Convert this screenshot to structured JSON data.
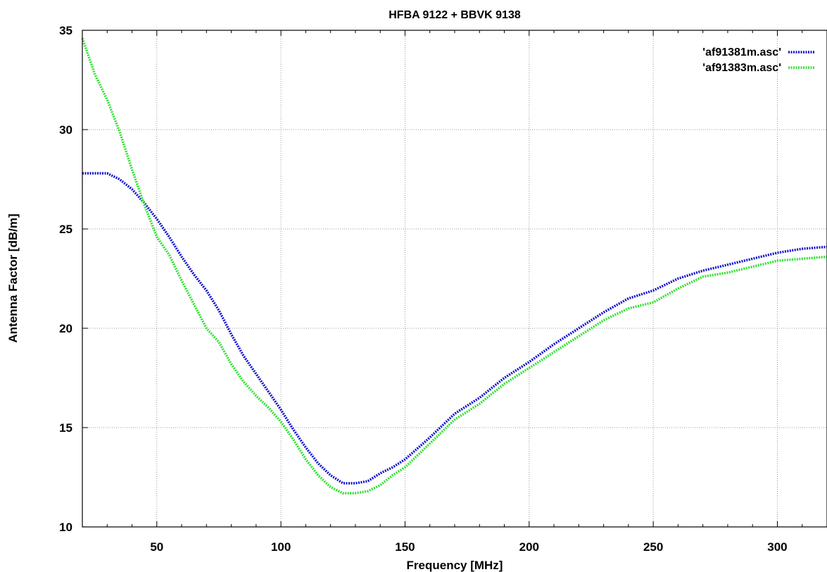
{
  "chart_data": {
    "type": "line",
    "title": "HFBA 9122 + BBVK 9138",
    "xlabel": "Frequency [MHz]",
    "ylabel": "Antenna Factor [dB/m]",
    "xlim": [
      20,
      320
    ],
    "ylim": [
      10,
      35
    ],
    "xticks": [
      50,
      100,
      150,
      200,
      250,
      300
    ],
    "yticks": [
      10,
      15,
      20,
      25,
      30,
      35
    ],
    "grid": true,
    "legend_position": "top-right",
    "series": [
      {
        "name": "'af91381m.asc'",
        "color": "#1010d0",
        "x": [
          20,
          25,
          30,
          35,
          40,
          45,
          50,
          55,
          60,
          65,
          70,
          75,
          80,
          85,
          90,
          95,
          100,
          105,
          110,
          115,
          120,
          125,
          130,
          135,
          140,
          145,
          150,
          160,
          170,
          180,
          190,
          200,
          210,
          220,
          230,
          240,
          250,
          260,
          270,
          280,
          290,
          300,
          310,
          320
        ],
        "y": [
          27.8,
          27.8,
          27.8,
          27.5,
          27.0,
          26.3,
          25.5,
          24.6,
          23.6,
          22.7,
          21.9,
          20.9,
          19.7,
          18.6,
          17.7,
          16.8,
          15.9,
          14.9,
          14.0,
          13.2,
          12.6,
          12.2,
          12.2,
          12.3,
          12.7,
          13.0,
          13.4,
          14.5,
          15.7,
          16.5,
          17.5,
          18.3,
          19.2,
          20.0,
          20.8,
          21.5,
          21.9,
          22.5,
          22.9,
          23.2,
          23.5,
          23.8,
          24.0,
          24.1
        ]
      },
      {
        "name": "'af91383m.asc'",
        "color": "#30e030",
        "x": [
          20,
          25,
          30,
          35,
          40,
          45,
          50,
          55,
          60,
          65,
          70,
          75,
          80,
          85,
          90,
          95,
          100,
          105,
          110,
          115,
          120,
          125,
          130,
          135,
          140,
          145,
          150,
          160,
          170,
          180,
          190,
          200,
          210,
          220,
          230,
          240,
          250,
          260,
          270,
          280,
          290,
          300,
          310,
          320
        ],
        "y": [
          34.6,
          32.8,
          31.5,
          29.9,
          28.0,
          26.2,
          24.6,
          23.7,
          22.4,
          21.2,
          20.0,
          19.3,
          18.2,
          17.3,
          16.6,
          16.0,
          15.3,
          14.4,
          13.4,
          12.6,
          12.0,
          11.7,
          11.7,
          11.8,
          12.1,
          12.6,
          13.0,
          14.2,
          15.4,
          16.2,
          17.2,
          18.0,
          18.8,
          19.6,
          20.4,
          21.0,
          21.3,
          22.0,
          22.6,
          22.8,
          23.1,
          23.4,
          23.5,
          23.6
        ]
      }
    ]
  }
}
